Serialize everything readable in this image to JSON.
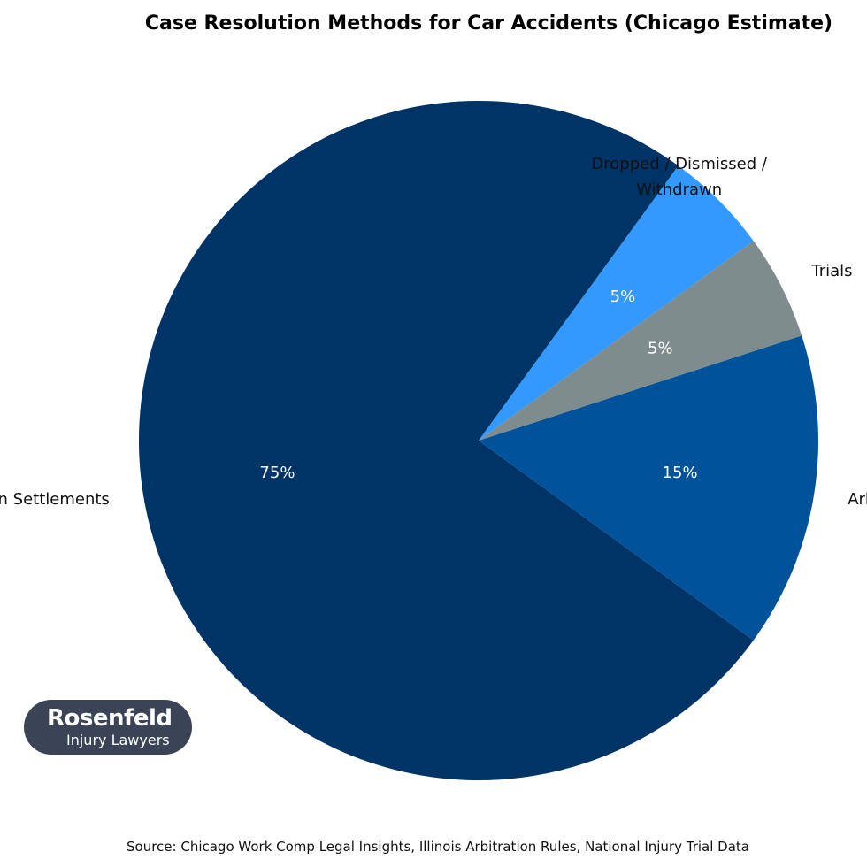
{
  "chart_data": {
    "type": "pie",
    "title": "Case Resolution Methods for Car Accidents (Chicago Estimate)",
    "slices": [
      {
        "label": "Negotiation / Mediation Settlements",
        "value": 75,
        "value_label": "75%",
        "color": "#003366"
      },
      {
        "label": "Arbitration Settlements",
        "value": 15,
        "value_label": "15%",
        "color": "#00529b"
      },
      {
        "label": "Trials",
        "value": 5,
        "value_label": "5%",
        "color": "#7f8c8d"
      },
      {
        "label": "Dropped / Dismissed / Withdrawn",
        "value": 5,
        "value_label": "5%",
        "color": "#3399ff"
      }
    ],
    "start_angle_deg": 54,
    "direction": "counterclockwise",
    "legend": "none"
  },
  "source": "Source: Chicago Work Comp Legal Insights, Illinois Arbitration Rules, National Injury Trial Data",
  "logo": {
    "line1": "Rosenfeld",
    "line2": "Injury Lawyers"
  }
}
